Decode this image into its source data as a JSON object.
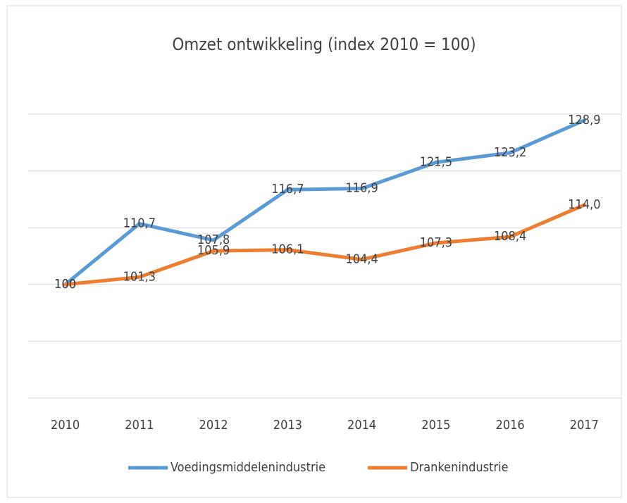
{
  "chart_data": {
    "type": "line",
    "title": "Omzet ontwikkeling (index 2010 = 100)",
    "categories": [
      "2010",
      "2011",
      "2012",
      "2013",
      "2014",
      "2015",
      "2016",
      "2017"
    ],
    "series": [
      {
        "name": "Voedingsmiddelenindustrie",
        "color": "#5b9bd5",
        "values": [
          100,
          110.7,
          107.8,
          116.7,
          116.9,
          121.5,
          123.2,
          128.9
        ],
        "value_labels": [
          "100",
          "110,7",
          "107,8",
          "116,7",
          "116,9",
          "121,5",
          "123,2",
          "128,9"
        ]
      },
      {
        "name": "Drankenindustrie",
        "color": "#ed7d31",
        "values": [
          100,
          101.3,
          105.9,
          106.1,
          104.4,
          107.3,
          108.4,
          114.0
        ],
        "value_labels": [
          "100",
          "101,3",
          "105,9",
          "106,1",
          "104,4",
          "107,3",
          "108,4",
          "114,0"
        ]
      }
    ],
    "ylim": [
      80,
      130
    ],
    "yticks": [
      80,
      90,
      100,
      110,
      120,
      130
    ],
    "grid": true,
    "legend": "bottom"
  }
}
